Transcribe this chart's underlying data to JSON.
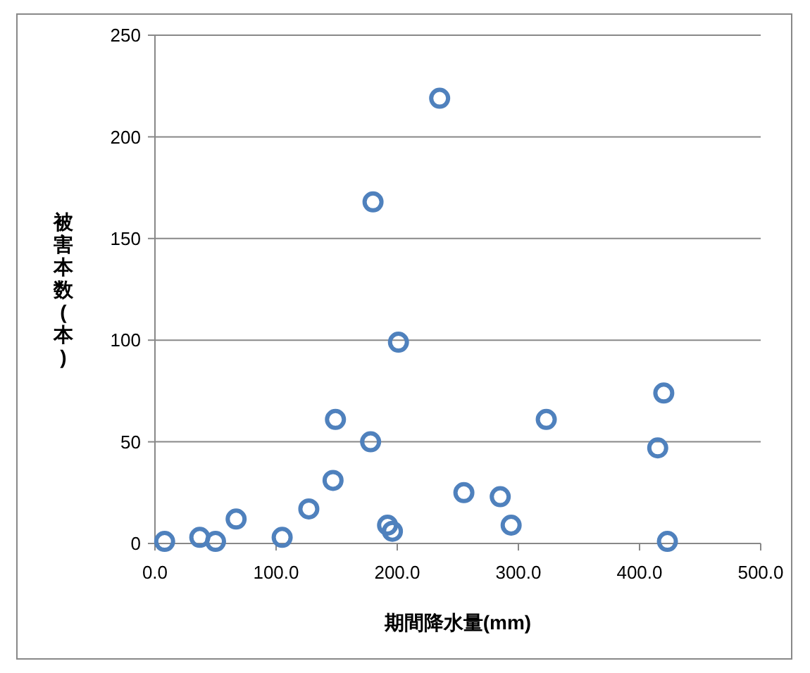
{
  "chart_data": {
    "type": "scatter",
    "xlabel": "期間降水量(mm)",
    "ylabel": "被害本数(本)",
    "x": [
      8,
      37,
      50,
      67,
      105,
      127,
      147,
      149,
      178,
      180,
      192,
      196,
      201,
      235,
      255,
      285,
      294,
      323,
      415,
      420,
      423
    ],
    "series": [
      {
        "color": "#4f81bd",
        "values": [
          1,
          3,
          1,
          12,
          3,
          17,
          31,
          61,
          50,
          168,
          9,
          6,
          99,
          219,
          25,
          23,
          9,
          61,
          47,
          74,
          1
        ]
      }
    ],
    "xlim": [
      0,
      500
    ],
    "ylim": [
      0,
      250
    ],
    "xticks": [
      {
        "value": 0,
        "label": "0.0"
      },
      {
        "value": 100,
        "label": "100.0"
      },
      {
        "value": 200,
        "label": "200.0"
      },
      {
        "value": 300,
        "label": "300.0"
      },
      {
        "value": 400,
        "label": "400.0"
      },
      {
        "value": 500,
        "label": "500.0"
      }
    ],
    "yticks": [
      0,
      50,
      100,
      150,
      200,
      250
    ],
    "grid": "y",
    "marker": "circle"
  }
}
